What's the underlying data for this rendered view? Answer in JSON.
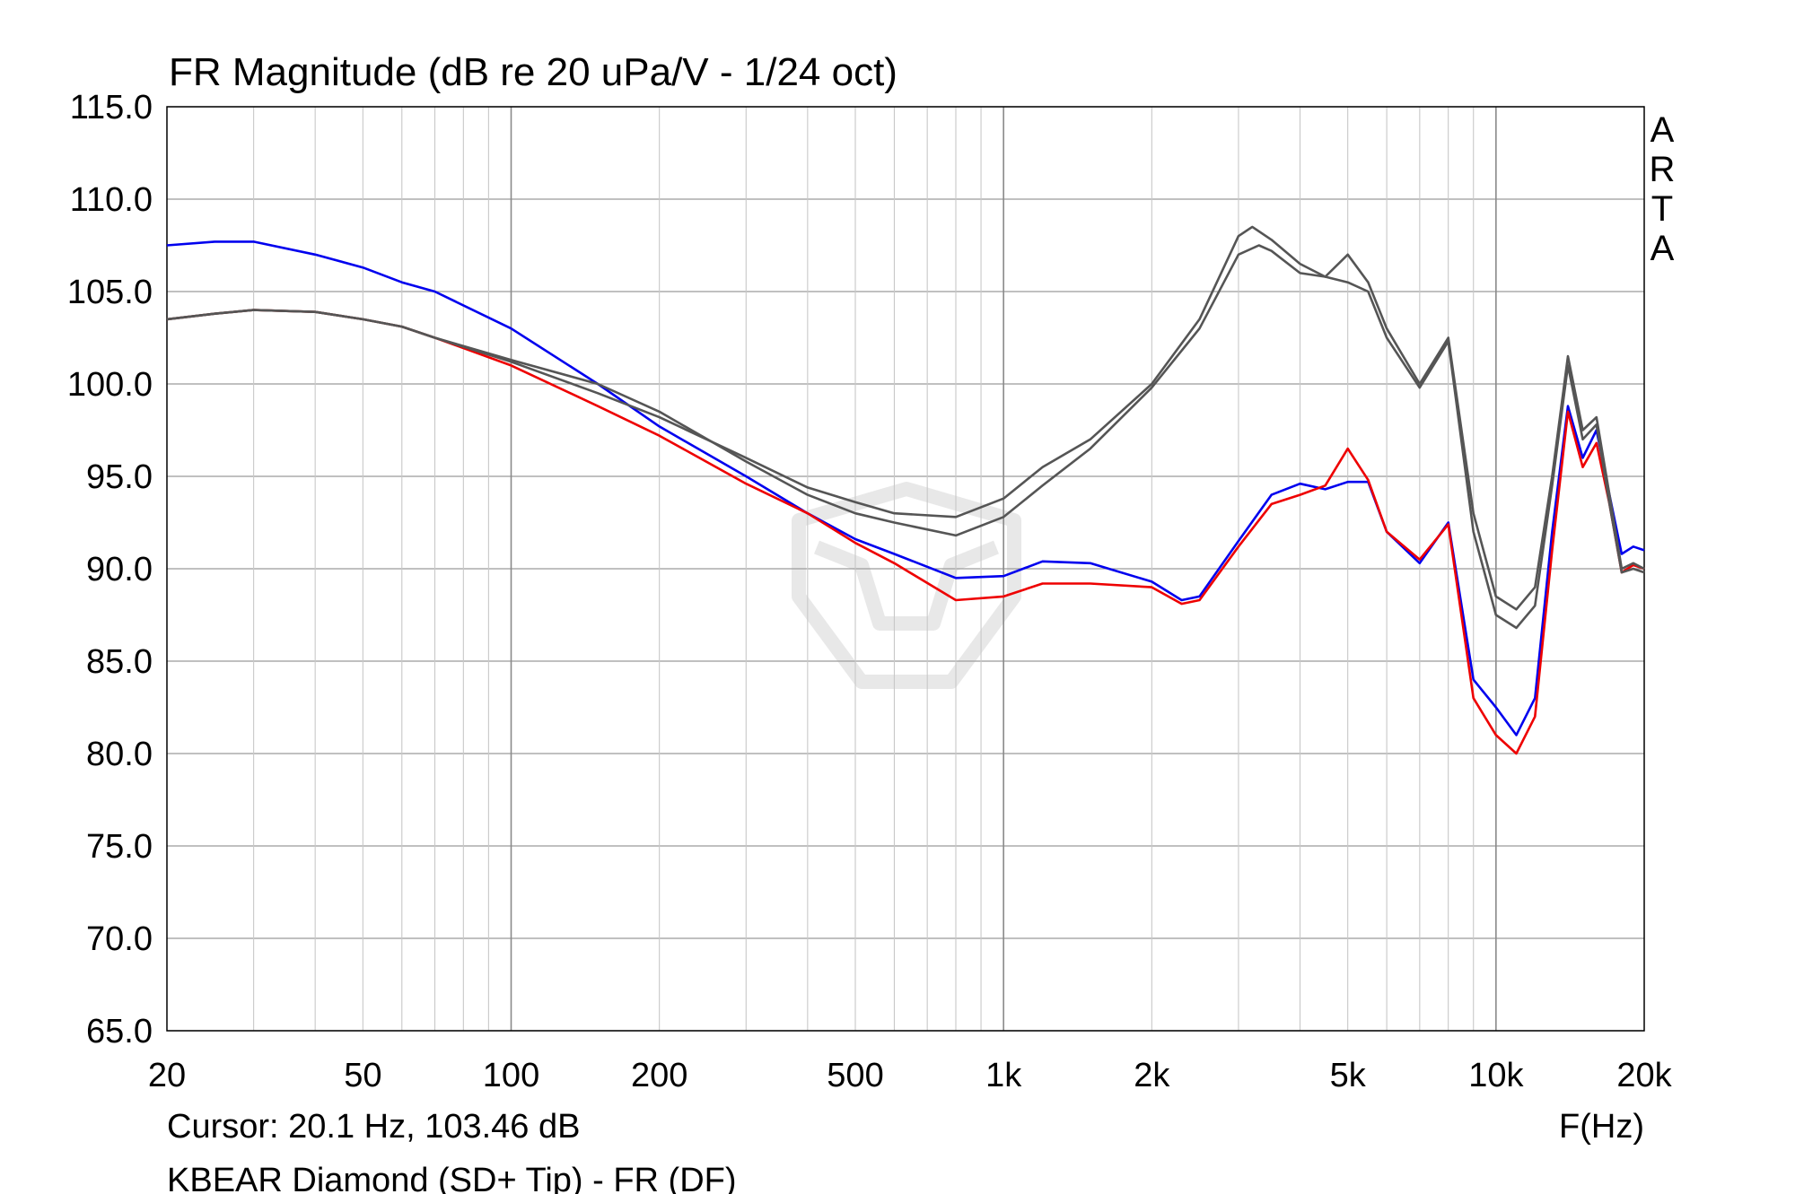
{
  "chart_data": {
    "type": "line",
    "title": "FR Magnitude (dB re 20 uPa/V - 1/24 oct)",
    "xlabel": "F(Hz)",
    "ylabel": "",
    "x_scale": "log",
    "xlim": [
      20,
      20000
    ],
    "ylim": [
      65,
      115
    ],
    "grid": true,
    "x_ticks": [
      {
        "value": 20,
        "label": "20"
      },
      {
        "value": 50,
        "label": "50"
      },
      {
        "value": 100,
        "label": "100"
      },
      {
        "value": 200,
        "label": "200"
      },
      {
        "value": 500,
        "label": "500"
      },
      {
        "value": 1000,
        "label": "1k"
      },
      {
        "value": 2000,
        "label": "2k"
      },
      {
        "value": 5000,
        "label": "5k"
      },
      {
        "value": 10000,
        "label": "10k"
      },
      {
        "value": 20000,
        "label": "20k"
      }
    ],
    "y_ticks": [
      {
        "value": 115,
        "label": "115.0"
      },
      {
        "value": 110,
        "label": "110.0"
      },
      {
        "value": 105,
        "label": "105.0"
      },
      {
        "value": 100,
        "label": "100.0"
      },
      {
        "value": 95,
        "label": "95.0"
      },
      {
        "value": 90,
        "label": "90.0"
      },
      {
        "value": 85,
        "label": "85.0"
      },
      {
        "value": 80,
        "label": "80.0"
      },
      {
        "value": 75,
        "label": "75.0"
      },
      {
        "value": 70,
        "label": "70.0"
      },
      {
        "value": 65,
        "label": "65.0"
      }
    ],
    "series": [
      {
        "color": "#0000ee",
        "x": [
          20,
          25,
          30,
          40,
          50,
          60,
          70,
          100,
          150,
          200,
          300,
          400,
          500,
          600,
          800,
          1000,
          1200,
          1500,
          2000,
          2300,
          2500,
          3000,
          3500,
          4000,
          4500,
          5000,
          5500,
          6000,
          7000,
          8000,
          9000,
          10000,
          11000,
          12000,
          13000,
          14000,
          15000,
          16000,
          17000,
          18000,
          19000,
          20000
        ],
        "y": [
          107.5,
          107.7,
          107.7,
          107.0,
          106.3,
          105.5,
          105.0,
          103.0,
          100.0,
          97.7,
          95.0,
          93.0,
          91.6,
          90.8,
          89.5,
          89.6,
          90.4,
          90.3,
          89.3,
          88.3,
          88.5,
          91.5,
          94.0,
          94.6,
          94.3,
          94.7,
          94.7,
          92.0,
          90.3,
          92.5,
          84.0,
          82.5,
          81.0,
          83.0,
          92.0,
          98.8,
          96.0,
          97.5,
          94.0,
          90.8,
          91.2,
          91.0
        ]
      },
      {
        "color": "#ee0000",
        "x": [
          20,
          25,
          30,
          40,
          50,
          60,
          70,
          100,
          150,
          200,
          300,
          400,
          500,
          600,
          800,
          1000,
          1200,
          1500,
          2000,
          2300,
          2500,
          3000,
          3500,
          4000,
          4500,
          5000,
          5500,
          6000,
          7000,
          8000,
          9000,
          10000,
          11000,
          12000,
          13000,
          14000,
          15000,
          16000,
          17000,
          18000,
          19000,
          20000
        ],
        "y": [
          103.5,
          103.8,
          104.0,
          103.9,
          103.5,
          103.1,
          102.5,
          101.0,
          98.8,
          97.2,
          94.6,
          93.0,
          91.4,
          90.3,
          88.3,
          88.5,
          89.2,
          89.2,
          89.0,
          88.1,
          88.3,
          91.2,
          93.5,
          94.0,
          94.5,
          96.5,
          94.8,
          92.0,
          90.5,
          92.4,
          83.0,
          81.0,
          80.0,
          82.0,
          91.0,
          98.5,
          95.5,
          96.8,
          93.5,
          89.8,
          90.2,
          90.0
        ]
      },
      {
        "color": "#555555",
        "x": [
          20,
          25,
          30,
          40,
          50,
          60,
          70,
          100,
          150,
          200,
          300,
          400,
          500,
          600,
          800,
          1000,
          1200,
          1500,
          2000,
          2500,
          3000,
          3200,
          3500,
          4000,
          4500,
          5000,
          5500,
          6000,
          7000,
          8000,
          9000,
          10000,
          11000,
          12000,
          13000,
          14000,
          15000,
          16000,
          17000,
          18000,
          19000,
          20000
        ],
        "y": [
          103.5,
          103.8,
          104.0,
          103.9,
          103.5,
          103.1,
          102.5,
          101.2,
          99.5,
          98.2,
          96.0,
          94.4,
          93.6,
          93.0,
          92.8,
          93.8,
          95.5,
          97.0,
          100.0,
          103.5,
          108.0,
          108.5,
          107.8,
          106.5,
          105.8,
          107.0,
          105.5,
          103.0,
          100.0,
          102.5,
          93.0,
          88.5,
          87.8,
          89.0,
          95.0,
          101.5,
          97.5,
          98.2,
          94.0,
          90.0,
          90.3,
          90.0
        ]
      },
      {
        "color": "#555555",
        "x": [
          20,
          25,
          30,
          40,
          50,
          60,
          70,
          100,
          150,
          200,
          300,
          400,
          500,
          600,
          800,
          1000,
          1200,
          1500,
          2000,
          2500,
          3000,
          3300,
          3500,
          4000,
          4500,
          5000,
          5500,
          6000,
          7000,
          8000,
          9000,
          10000,
          11000,
          12000,
          13000,
          14000,
          15000,
          16000,
          17000,
          18000,
          19000,
          20000
        ],
        "y": [
          103.5,
          103.8,
          104.0,
          103.9,
          103.5,
          103.1,
          102.5,
          101.3,
          100.0,
          98.5,
          95.8,
          94.0,
          93.0,
          92.5,
          91.8,
          92.8,
          94.5,
          96.5,
          99.8,
          103.0,
          107.0,
          107.5,
          107.2,
          106.0,
          105.8,
          105.5,
          105.0,
          102.5,
          99.8,
          102.3,
          92.0,
          87.5,
          86.8,
          88.0,
          94.5,
          101.0,
          97.0,
          97.8,
          93.5,
          89.8,
          90.0,
          89.8
        ]
      }
    ],
    "cursor_text": "Cursor: 20.1 Hz, 103.46 dB",
    "legend_text": "KBEAR Diamond (SD+ Tip) - FR (DF)",
    "brand_letters": [
      "A",
      "R",
      "T",
      "A"
    ]
  }
}
